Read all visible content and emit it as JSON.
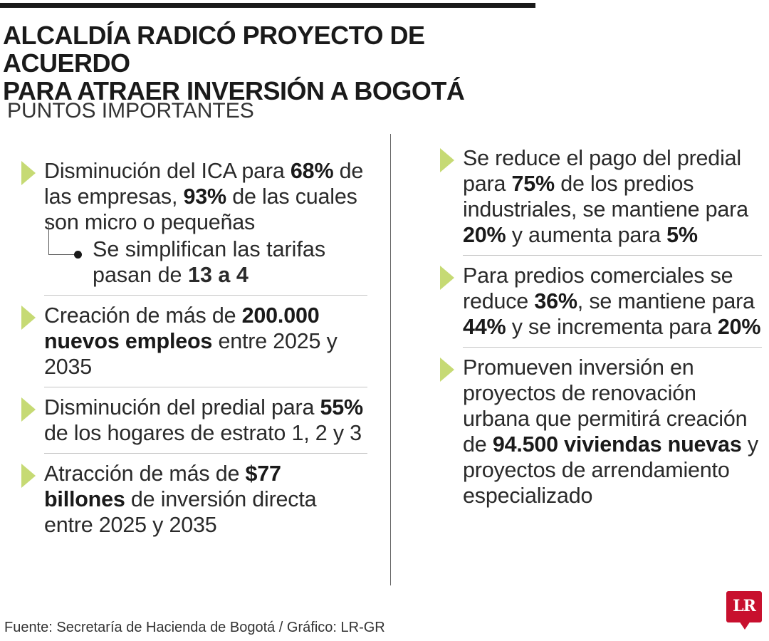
{
  "header": {
    "title_line1": "ALCALDÍA RADICÓ PROYECTO DE ACUERDO",
    "title_line2": "PARA ATRAER INVERSIÓN A BOGOTÁ",
    "subtitle": "PUNTOS IMPORTANTES"
  },
  "left_items": [
    {
      "parts": [
        {
          "t": "Disminución del ICA para "
        },
        {
          "t": "68%",
          "b": true
        },
        {
          "t": " de las empresas, "
        },
        {
          "t": "93%",
          "b": true
        },
        {
          "t": " de las cuales son micro o pequeñas"
        }
      ],
      "sub": [
        {
          "t": "Se simplifican las tarifas pasan de "
        },
        {
          "t": "13 a 4",
          "b": true
        }
      ]
    },
    {
      "parts": [
        {
          "t": "Creación de más de "
        },
        {
          "t": "200.000 nuevos empleos",
          "b": true
        },
        {
          "t": " entre 2025 y 2035"
        }
      ]
    },
    {
      "parts": [
        {
          "t": "Disminución del predial para "
        },
        {
          "t": "55%",
          "b": true
        },
        {
          "t": " de los hogares de estrato 1, 2 y 3"
        }
      ]
    },
    {
      "parts": [
        {
          "t": "Atracción de más de "
        },
        {
          "t": "$77 billones",
          "b": true
        },
        {
          "t": " de inversión directa entre 2025 y 2035"
        }
      ]
    }
  ],
  "right_items": [
    {
      "parts": [
        {
          "t": "Se reduce el pago del predial para "
        },
        {
          "t": "75%",
          "b": true
        },
        {
          "t": " de los predios industriales, se mantiene para "
        },
        {
          "t": "20%",
          "b": true
        },
        {
          "t": " y aumenta para "
        },
        {
          "t": "5%",
          "b": true
        }
      ]
    },
    {
      "parts": [
        {
          "t": "Para predios comerciales se reduce "
        },
        {
          "t": "36%",
          "b": true
        },
        {
          "t": ", se mantiene para "
        },
        {
          "t": "44%",
          "b": true
        },
        {
          "t": " y se incrementa para "
        },
        {
          "t": "20%",
          "b": true
        }
      ]
    },
    {
      "parts": [
        {
          "t": "Promueven inversión en proyectos de renovación urbana que permitirá creación de "
        },
        {
          "t": "94.500 viviendas nuevas",
          "b": true
        },
        {
          "t": " y proyectos de arrendamiento especializado"
        }
      ]
    }
  ],
  "footer": {
    "source": "Fuente: Secretaría de Hacienda de Bogotá / Gráfico: LR-GR",
    "logo": "LR"
  },
  "colors": {
    "arrow": "#c6da74",
    "logo": "#c8102e"
  }
}
